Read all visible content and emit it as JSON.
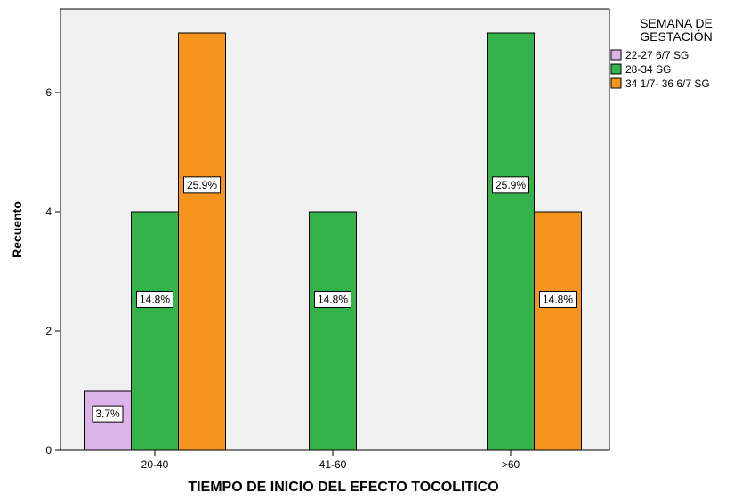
{
  "chart_data": {
    "type": "bar",
    "categories": [
      "20-40",
      "41-60",
      ">60"
    ],
    "series": [
      {
        "name": "22-27 6/7 SG",
        "color": "#dcb4ea",
        "values": [
          1,
          0,
          0
        ],
        "labels": [
          "3.7%",
          null,
          null
        ]
      },
      {
        "name": "28-34 SG",
        "color": "#33b34a",
        "values": [
          4,
          4,
          7
        ],
        "labels": [
          "14.8%",
          "14.8%",
          "25.9%"
        ]
      },
      {
        "name": "34 1/7- 36 6/7 SG",
        "color": "#f7941d",
        "values": [
          7,
          0,
          4
        ],
        "labels": [
          "25.9%",
          null,
          "14.8%"
        ]
      }
    ],
    "xlabel": "TIEMPO DE INICIO DEL EFECTO TOCOLITICO",
    "ylabel": "Recuento",
    "ylim": [
      0,
      7
    ],
    "yticks": [
      0,
      2,
      4,
      6
    ],
    "legend": {
      "title_lines": [
        "SEMANA DE",
        "GESTACIÓN"
      ],
      "position": "right"
    },
    "plot_background": "#f0f0f0",
    "grid": false
  }
}
